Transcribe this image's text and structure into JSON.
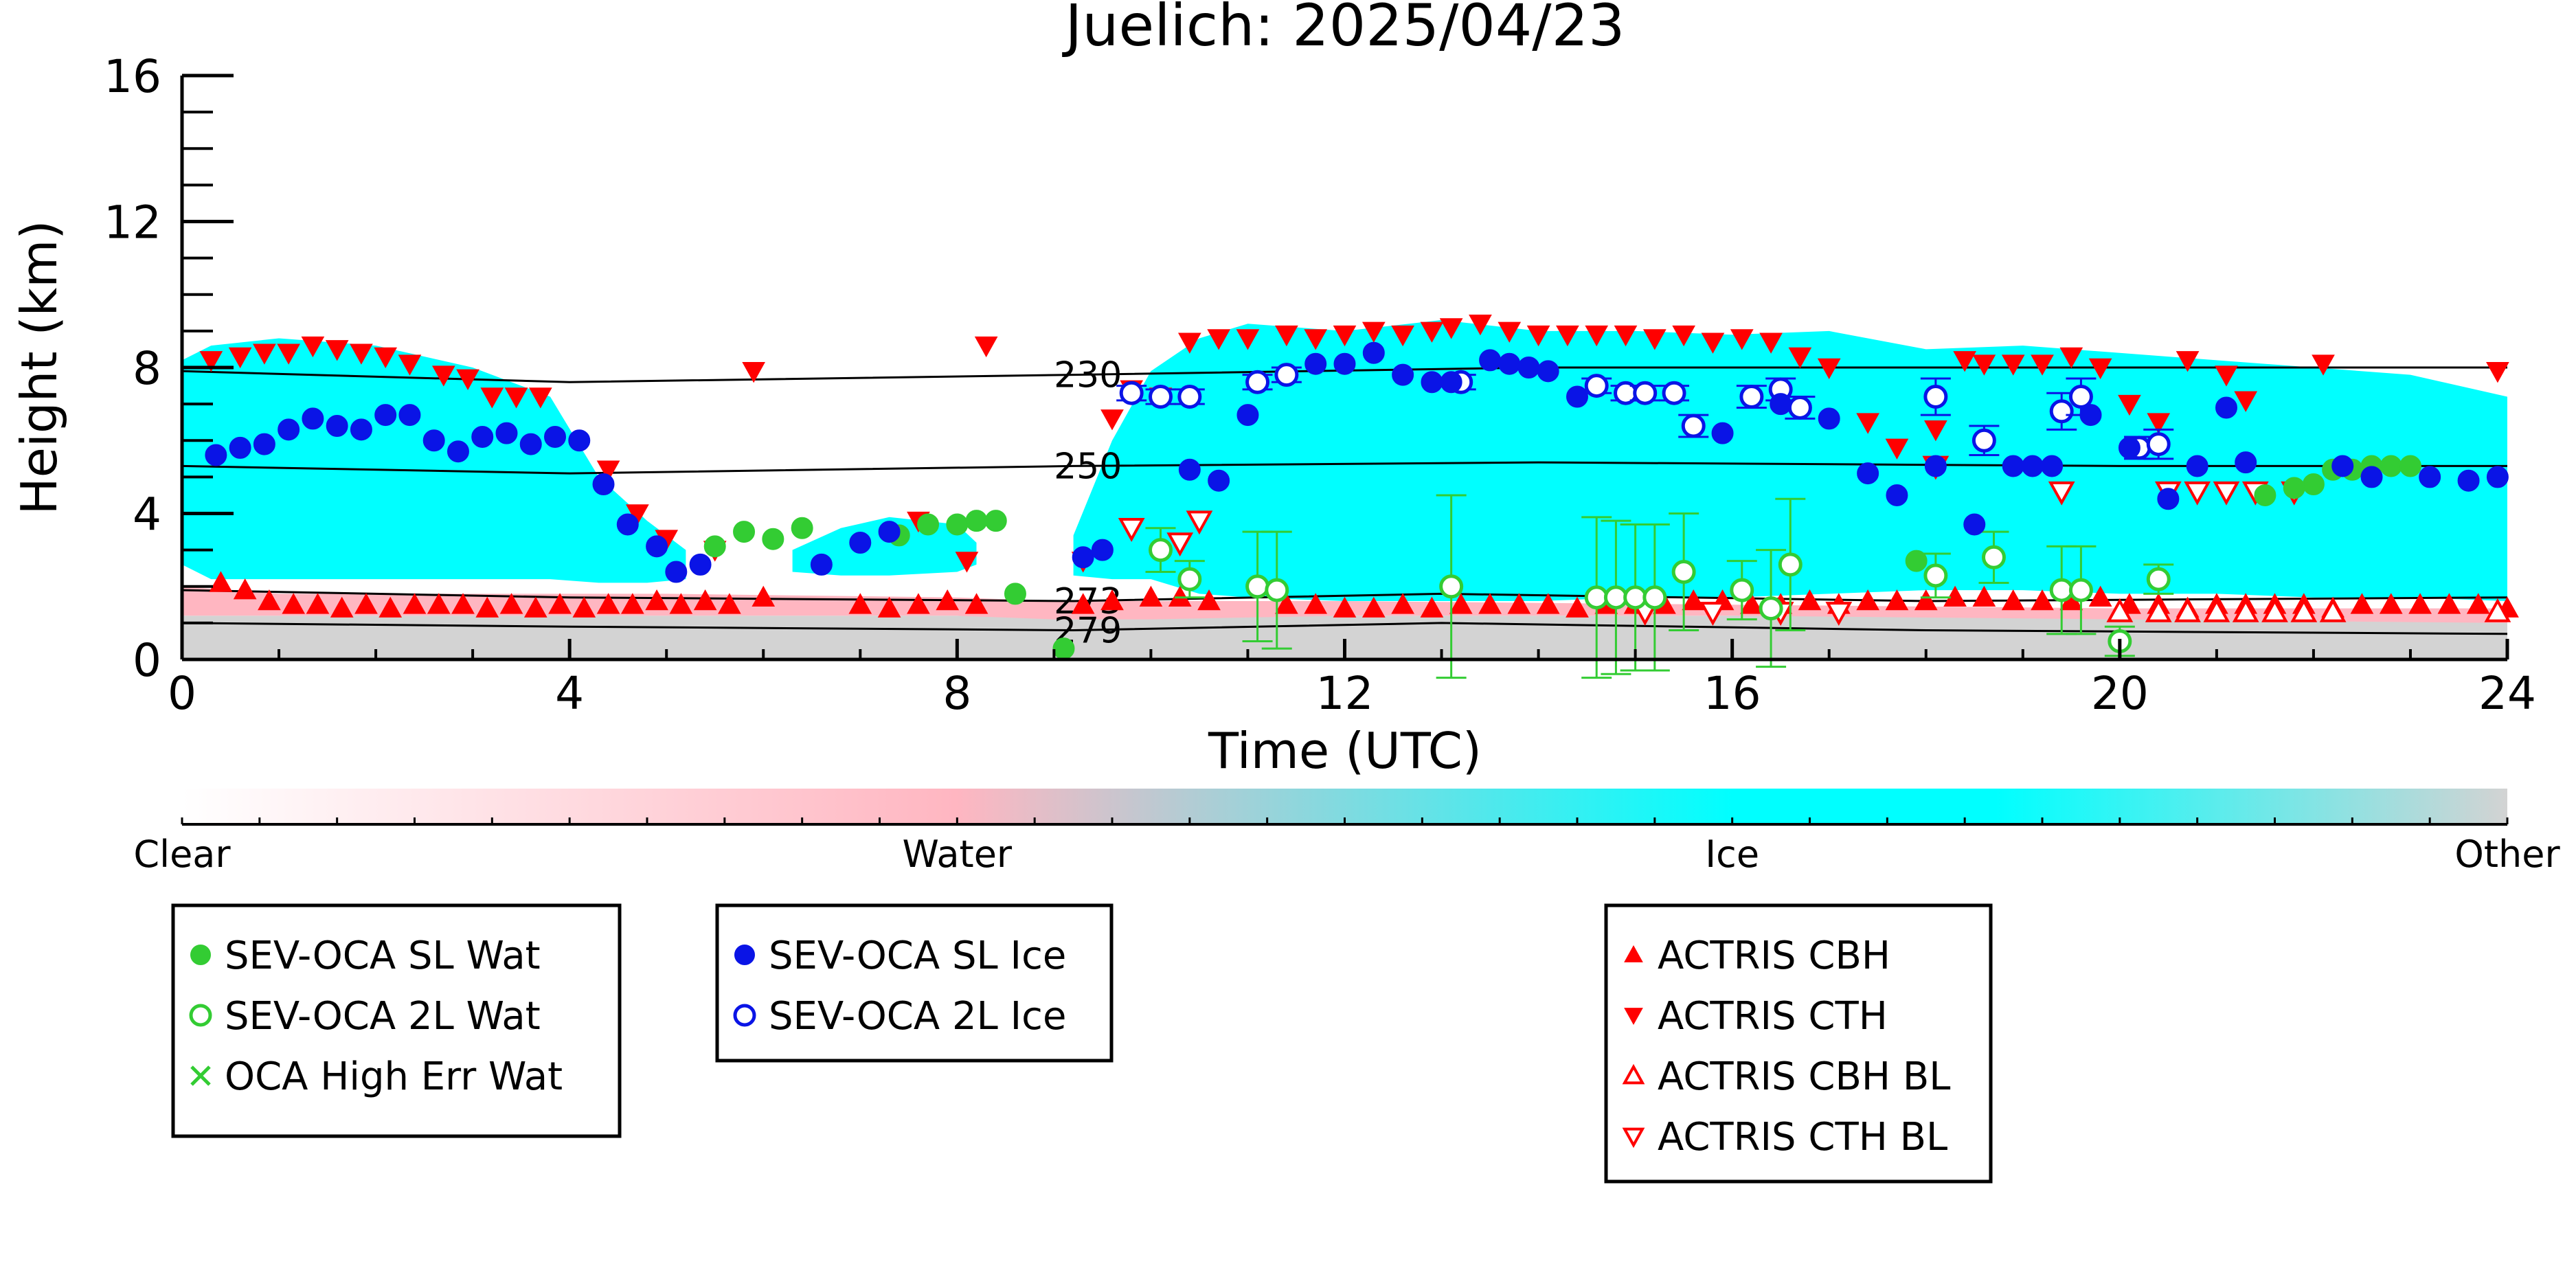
{
  "chart_data": {
    "type": "scatter",
    "title": "Juelich: 2025/04/23",
    "xlabel": "Time (UTC)",
    "ylabel": "Height (km)",
    "xlim": [
      0,
      24
    ],
    "ylim": [
      0,
      16
    ],
    "x_ticks": [
      0,
      4,
      8,
      12,
      16,
      20,
      24
    ],
    "y_ticks": [
      0,
      4,
      8,
      12,
      16
    ],
    "grid": false,
    "background_field": {
      "description_classes": [
        "Clear",
        "Water",
        "Ice",
        "Other"
      ],
      "ice_regions": [
        {
          "x": [
            0,
            0.3,
            1,
            2,
            3,
            3.8,
            4.3,
            4.8,
            5.2
          ],
          "top": [
            8.2,
            8.6,
            8.8,
            8.6,
            8.0,
            7.2,
            5.0,
            3.8,
            3.0
          ],
          "bottom": [
            2.6,
            2.2,
            2.2,
            2.2,
            2.2,
            2.2,
            2.1,
            2.1,
            2.2
          ]
        },
        {
          "x": [
            6.3,
            6.8,
            7.3,
            8.0,
            8.2
          ],
          "top": [
            3.0,
            3.6,
            3.9,
            3.7,
            3.2
          ],
          "bottom": [
            2.4,
            2.3,
            2.3,
            2.4,
            2.6
          ]
        },
        {
          "x": [
            9.2,
            9.6,
            10,
            10.5,
            11,
            12,
            13,
            14,
            15,
            16,
            17,
            18,
            19,
            20,
            21,
            22,
            23,
            24
          ],
          "top": [
            3.4,
            6.0,
            7.9,
            8.8,
            9.2,
            9.0,
            9.3,
            9.0,
            9.0,
            8.9,
            9.0,
            8.5,
            8.6,
            8.4,
            8.2,
            8.0,
            7.8,
            7.2
          ],
          "bottom": [
            2.3,
            2.2,
            2.2,
            1.8,
            1.7,
            1.6,
            1.6,
            1.6,
            1.7,
            1.7,
            1.8,
            1.9,
            1.9,
            1.8,
            1.8,
            1.7,
            1.7,
            1.6
          ]
        }
      ],
      "water_regions": [
        {
          "x": [
            0,
            1,
            4,
            5,
            8,
            9,
            10,
            12,
            16,
            20,
            24
          ],
          "top": [
            2.0,
            1.8,
            1.8,
            1.8,
            1.7,
            1.6,
            1.6,
            1.6,
            1.5,
            1.4,
            1.4
          ],
          "bottom": [
            1.2,
            1.2,
            1.2,
            1.2,
            1.2,
            1.1,
            1.1,
            1.2,
            1.2,
            1.1,
            1.0
          ]
        }
      ],
      "other_below_km": 1.2
    },
    "temperature_contours": [
      {
        "label": "230",
        "x": [
          0,
          4,
          9.2,
          14,
          20,
          24
        ],
        "y": [
          7.9,
          7.6,
          7.8,
          8.0,
          8.0,
          8.0
        ]
      },
      {
        "label": "250",
        "x": [
          0,
          4,
          9.2,
          14,
          20,
          24
        ],
        "y": [
          5.3,
          5.1,
          5.3,
          5.4,
          5.3,
          5.3
        ]
      },
      {
        "label": "273",
        "x": [
          0,
          4,
          9.2,
          13,
          18,
          24
        ],
        "y": [
          1.9,
          1.7,
          1.6,
          1.8,
          1.6,
          1.7
        ]
      },
      {
        "label": "279",
        "x": [
          0,
          4,
          9.2,
          13,
          18,
          24
        ],
        "y": [
          1.0,
          0.9,
          0.8,
          1.0,
          0.8,
          0.7
        ]
      }
    ],
    "series": [
      {
        "name": "SEV-OCA SL Wat",
        "marker": "filled-circle",
        "color": "#33cc33",
        "x": [
          5.5,
          5.8,
          6.1,
          6.4,
          7.4,
          7.7,
          8.0,
          8.2,
          8.4,
          8.6,
          9.1,
          17.9,
          21.5,
          21.8,
          22.0,
          22.2,
          22.4,
          22.6,
          22.8,
          23.0
        ],
        "y": [
          3.1,
          3.5,
          3.3,
          3.6,
          3.4,
          3.7,
          3.7,
          3.8,
          3.8,
          1.8,
          0.3,
          2.7,
          4.5,
          4.7,
          4.8,
          5.2,
          5.2,
          5.3,
          5.3,
          5.3
        ]
      },
      {
        "name": "SEV-OCA 2L Wat",
        "marker": "open-circle",
        "color": "#33cc33",
        "x": [
          10.1,
          10.4,
          11.1,
          11.3,
          13.1,
          14.6,
          14.8,
          15.0,
          15.2,
          15.5,
          16.1,
          16.4,
          16.6,
          18.1,
          18.7,
          19.4,
          19.6,
          20.0,
          20.4
        ],
        "y": [
          3.0,
          2.2,
          2.0,
          1.9,
          2.0,
          1.7,
          1.7,
          1.7,
          1.7,
          2.4,
          1.9,
          1.4,
          2.6,
          2.3,
          2.8,
          1.9,
          1.9,
          0.5,
          2.2
        ],
        "err": [
          0.6,
          0.5,
          1.5,
          1.6,
          2.5,
          2.2,
          2.1,
          2.0,
          2.0,
          1.6,
          0.8,
          1.6,
          1.8,
          0.6,
          0.7,
          1.2,
          1.2,
          0.4,
          0.4
        ]
      },
      {
        "name": "OCA High Err Wat",
        "marker": "x",
        "color": "#33cc33",
        "x": [],
        "y": []
      },
      {
        "name": "SEV-OCA SL Ice",
        "marker": "filled-circle",
        "color": "#0a14e6",
        "x": [
          0.35,
          0.6,
          0.85,
          1.1,
          1.35,
          1.6,
          1.85,
          2.1,
          2.35,
          2.6,
          2.85,
          3.1,
          3.35,
          3.6,
          3.85,
          4.1,
          4.35,
          4.6,
          4.9,
          5.1,
          5.35,
          6.6,
          7.0,
          7.3,
          9.3,
          9.5,
          10.4,
          10.7,
          11.0,
          11.7,
          12.0,
          12.3,
          12.6,
          12.9,
          13.1,
          13.5,
          13.7,
          13.9,
          14.1,
          14.4,
          15.9,
          16.5,
          17.0,
          17.4,
          17.7,
          18.1,
          18.5,
          18.9,
          19.1,
          19.3,
          19.7,
          20.1,
          20.5,
          20.8,
          21.1,
          21.3,
          22.3,
          22.6,
          23.2,
          23.6,
          23.9
        ],
        "y": [
          5.6,
          5.8,
          5.9,
          6.3,
          6.6,
          6.4,
          6.3,
          6.7,
          6.7,
          6.0,
          5.7,
          6.1,
          6.2,
          5.9,
          6.1,
          6.0,
          4.8,
          3.7,
          3.1,
          2.4,
          2.6,
          2.6,
          3.2,
          3.5,
          2.8,
          3.0,
          5.2,
          4.9,
          6.7,
          8.1,
          8.1,
          8.4,
          7.8,
          7.6,
          7.6,
          8.2,
          8.1,
          8.0,
          7.9,
          7.2,
          6.2,
          7.0,
          6.6,
          5.1,
          4.5,
          5.3,
          3.7,
          5.3,
          5.3,
          5.3,
          6.7,
          5.8,
          4.4,
          5.3,
          6.9,
          5.4,
          5.3,
          5.0,
          5.0,
          4.9,
          5.0
        ]
      },
      {
        "name": "SEV-OCA 2L Ice",
        "marker": "open-circle",
        "color": "#0a14e6",
        "x": [
          9.8,
          10.1,
          10.4,
          11.1,
          11.4,
          13.2,
          14.6,
          14.9,
          15.1,
          15.4,
          15.6,
          16.2,
          16.5,
          16.7,
          18.1,
          18.6,
          19.4,
          19.6,
          20.2,
          20.4
        ],
        "y": [
          7.3,
          7.2,
          7.2,
          7.6,
          7.8,
          7.6,
          7.5,
          7.3,
          7.3,
          7.3,
          6.4,
          7.2,
          7.4,
          6.9,
          7.2,
          6.0,
          6.8,
          7.2,
          5.8,
          5.9
        ],
        "err": [
          0.2,
          0.2,
          0.2,
          0.2,
          0.2,
          0.2,
          0.2,
          0.2,
          0.2,
          0.2,
          0.3,
          0.3,
          0.3,
          0.3,
          0.5,
          0.4,
          0.5,
          0.5,
          0.3,
          0.4
        ]
      },
      {
        "name": "ACTRIS CBH",
        "marker": "triangle-up-filled",
        "color": "#ff0000",
        "x": [
          0.4,
          0.65,
          0.9,
          1.15,
          1.4,
          1.65,
          1.9,
          2.15,
          2.4,
          2.65,
          2.9,
          3.15,
          3.4,
          3.65,
          3.9,
          4.15,
          4.4,
          4.65,
          4.9,
          5.15,
          5.4,
          5.65,
          6.0,
          7.0,
          7.3,
          7.6,
          7.9,
          8.2,
          9.3,
          9.6,
          10.0,
          10.3,
          10.6,
          11.4,
          11.7,
          12.0,
          12.3,
          12.6,
          12.9,
          13.2,
          13.5,
          13.8,
          14.1,
          14.4,
          14.7,
          15.0,
          15.3,
          15.6,
          15.9,
          16.2,
          16.5,
          16.8,
          17.1,
          17.4,
          17.7,
          18.0,
          18.3,
          18.6,
          18.9,
          19.2,
          19.5,
          19.8,
          20.1,
          20.4,
          20.7,
          21.0,
          21.3,
          21.6,
          21.9,
          22.2,
          22.5,
          22.8,
          23.1,
          23.4,
          23.7,
          24.0
        ],
        "y": [
          2.1,
          1.9,
          1.6,
          1.5,
          1.5,
          1.4,
          1.5,
          1.4,
          1.5,
          1.5,
          1.5,
          1.4,
          1.5,
          1.4,
          1.5,
          1.4,
          1.5,
          1.5,
          1.6,
          1.5,
          1.6,
          1.5,
          1.7,
          1.5,
          1.4,
          1.5,
          1.6,
          1.5,
          1.5,
          1.6,
          1.7,
          1.7,
          1.6,
          1.5,
          1.5,
          1.4,
          1.4,
          1.5,
          1.4,
          1.5,
          1.5,
          1.5,
          1.5,
          1.4,
          1.5,
          1.5,
          1.5,
          1.6,
          1.6,
          1.5,
          1.5,
          1.6,
          1.5,
          1.6,
          1.6,
          1.6,
          1.7,
          1.7,
          1.6,
          1.6,
          1.6,
          1.7,
          1.5,
          1.5,
          1.4,
          1.5,
          1.5,
          1.5,
          1.5,
          1.4,
          1.5,
          1.5,
          1.5,
          1.5,
          1.5,
          1.4
        ]
      },
      {
        "name": "ACTRIS CTH",
        "marker": "triangle-down-filled",
        "color": "#ff0000",
        "x": [
          0.3,
          0.6,
          0.85,
          1.1,
          1.35,
          1.6,
          1.85,
          2.1,
          2.35,
          2.7,
          2.95,
          3.2,
          3.45,
          3.7,
          4.4,
          4.7,
          5.0,
          5.5,
          5.9,
          7.6,
          8.1,
          8.3,
          9.3,
          9.6,
          9.8,
          10.1,
          10.4,
          10.7,
          11.0,
          11.4,
          11.7,
          12.0,
          12.3,
          12.6,
          12.9,
          13.1,
          13.4,
          13.7,
          14.0,
          14.3,
          14.6,
          14.9,
          15.2,
          15.5,
          15.8,
          16.1,
          16.4,
          16.7,
          17.0,
          17.4,
          17.7,
          18.1,
          18.4,
          18.6,
          18.9,
          19.2,
          19.5,
          19.8,
          20.1,
          20.4,
          20.7,
          21.1,
          21.3,
          22.1,
          23.9
        ],
        "y": [
          8.2,
          8.3,
          8.4,
          8.4,
          8.6,
          8.5,
          8.4,
          8.3,
          8.1,
          7.8,
          7.7,
          7.2,
          7.2,
          7.2,
          5.2,
          4.0,
          3.3,
          3.0,
          7.9,
          3.8,
          2.7,
          8.6,
          2.7,
          6.6,
          7.4,
          7.2,
          8.7,
          8.8,
          8.8,
          8.9,
          8.8,
          8.9,
          9.0,
          8.9,
          9.0,
          9.1,
          9.2,
          9.0,
          8.9,
          8.9,
          8.9,
          8.9,
          8.8,
          8.9,
          8.7,
          8.8,
          8.7,
          8.3,
          8.0,
          6.5,
          5.8,
          6.3,
          8.2,
          8.1,
          8.1,
          8.1,
          8.3,
          8.0,
          7.0,
          6.5,
          8.2,
          7.8,
          7.1,
          8.1,
          7.9
        ]
      },
      {
        "name": "ACTRIS CBH BL",
        "marker": "triangle-up-open",
        "color": "#ff0000",
        "x": [
          20.0,
          20.4,
          20.7,
          21.0,
          21.3,
          21.6,
          21.9,
          22.2,
          23.9
        ],
        "y": [
          1.3,
          1.3,
          1.3,
          1.3,
          1.3,
          1.3,
          1.3,
          1.3,
          1.3
        ]
      },
      {
        "name": "ACTRIS CTH BL",
        "marker": "triangle-down-open",
        "color": "#ff0000",
        "x": [
          9.8,
          10.3,
          10.5,
          15.1,
          15.8,
          16.5,
          17.1,
          18.1,
          19.4,
          20.5,
          20.8,
          21.1,
          21.4,
          21.8
        ],
        "y": [
          3.6,
          3.2,
          3.8,
          1.3,
          1.3,
          1.3,
          1.3,
          5.3,
          4.6,
          4.6,
          4.6,
          4.6,
          4.6,
          4.6
        ]
      }
    ],
    "colorbar": {
      "labels": [
        "Clear",
        "Water",
        "Ice",
        "Other"
      ],
      "colors": [
        "#ffffff",
        "#ffb6c1",
        "#00ffff",
        "#d3d3d3"
      ]
    },
    "legend": {
      "placement": "below",
      "groups": [
        [
          "SEV-OCA SL Wat",
          "SEV-OCA 2L Wat",
          "OCA High Err Wat"
        ],
        [
          "SEV-OCA SL Ice",
          "SEV-OCA 2L Ice"
        ],
        [
          "ACTRIS CBH",
          "ACTRIS CTH",
          "ACTRIS CBH BL",
          "ACTRIS CTH BL"
        ]
      ]
    }
  }
}
